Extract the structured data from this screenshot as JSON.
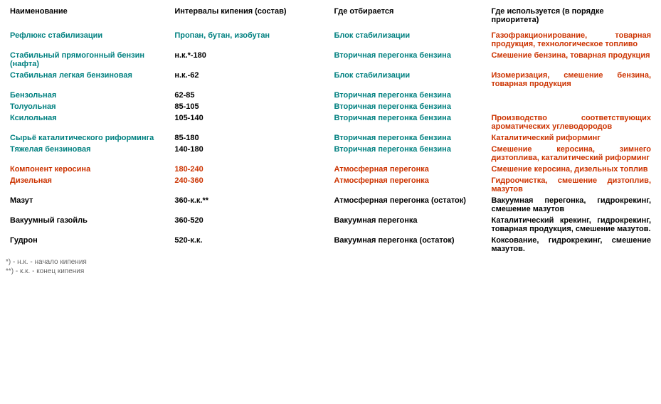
{
  "headers": {
    "h1": "Наименование",
    "h2": "Интервалы кипения (состав)",
    "h3": "Где отбирается",
    "h4": "Где используется (в порядке приоритета)"
  },
  "rows": [
    {
      "name": "Рефлюкс стабилизации",
      "nameCls": "c-teal",
      "interval": "Пропан, бутан, изобутан",
      "intervalCls": "c-teal",
      "where": "Блок стабилизации",
      "whereCls": "c-teal",
      "use": "Газофракционирование, товарная продукция, технологическое топливо",
      "useCls": "c-red justify"
    },
    {
      "name": "Стабильный прямогонный бензин (нафта)",
      "nameCls": "c-teal",
      "interval": "н.к.*-180",
      "intervalCls": "c-black",
      "where": "Вторичная перегонка бензина",
      "whereCls": "c-teal",
      "use": "Смешение бензина, товарная продукция",
      "useCls": "c-red justify"
    },
    {
      "name": "Стабильная легкая бензиновая",
      "nameCls": "c-teal",
      "interval": "н.к.-62",
      "intervalCls": "c-black",
      "where": "Блок стабилизации",
      "whereCls": "c-teal",
      "use": "Изомеризация, смешение бензина, товарная продукция",
      "useCls": "c-red justify"
    },
    {
      "name": "Бензольная",
      "nameCls": "c-teal",
      "interval": "62-85",
      "intervalCls": "c-black",
      "where": "Вторичная перегонка бензина",
      "whereCls": "c-teal",
      "use": "",
      "useCls": "c-red"
    },
    {
      "name": "Толуольная",
      "nameCls": "c-teal",
      "interval": "85-105",
      "intervalCls": "c-black",
      "where": "Вторичная перегонка бензина",
      "whereCls": "c-teal",
      "use": "",
      "useCls": "c-red"
    },
    {
      "name": "Ксилольная",
      "nameCls": "c-teal",
      "interval": "105-140",
      "intervalCls": "c-black",
      "where": "Вторичная перегонка бензина",
      "whereCls": "c-teal",
      "use": "Производство соответствующих ароматических углеводородов",
      "useCls": "c-red justify"
    },
    {
      "name": "Сырьё каталитического риформинга",
      "nameCls": "c-teal justify",
      "interval": "85-180",
      "intervalCls": "c-black",
      "where": "Вторичная перегонка бензина",
      "whereCls": "c-teal",
      "use": "Каталитический риформинг",
      "useCls": "c-red"
    },
    {
      "name": "Тяжелая бензиновая",
      "nameCls": "c-teal",
      "interval": "140-180",
      "intervalCls": "c-black",
      "where": "Вторичная перегонка бензина",
      "whereCls": "c-teal",
      "use": "Смешение керосина, зимнего дизтоплива, каталитический риформинг",
      "useCls": "c-red justify"
    },
    {
      "name": "Компонент керосина",
      "nameCls": "c-red",
      "interval": "180-240",
      "intervalCls": "c-red",
      "where": "Атмосферная перегонка",
      "whereCls": "c-red",
      "use": "Смешение керосина, дизельных топлив",
      "useCls": "c-red justify"
    },
    {
      "name": "Дизельная",
      "nameCls": "c-red",
      "interval": "240-360",
      "intervalCls": "c-red",
      "where": "Атмосферная перегонка",
      "whereCls": "c-red",
      "use": "Гидроочистка, смешение дизтоплив, мазутов",
      "useCls": "c-red justify"
    },
    {
      "name": "Мазут",
      "nameCls": "c-black",
      "interval": "360-к.к.**",
      "intervalCls": "c-black",
      "where": "Атмосферная перегонка (остаток)",
      "whereCls": "c-black justify",
      "use": "Вакуумная перегонка, гидрокрекинг, смешение мазутов",
      "useCls": "c-black justify"
    },
    {
      "name": "Вакуумный газойль",
      "nameCls": "c-black",
      "interval": "360-520",
      "intervalCls": "c-black",
      "where": "Вакуумная перегонка",
      "whereCls": "c-black",
      "use": "Каталитический крекинг, гидрокрекинг, товарная продукция, смешение мазутов.",
      "useCls": "c-black justify"
    },
    {
      "name": "Гудрон",
      "nameCls": "c-black",
      "interval": "520-к.к.",
      "intervalCls": "c-black",
      "where": "Вакуумная перегонка (остаток)",
      "whereCls": "c-black",
      "use": "Коксование, гидрокрекинг, смешение мазутов.",
      "useCls": "c-black justify"
    }
  ],
  "footnotes": {
    "f1": "*) - н.к. - начало кипения",
    "f2": "**) - к.к. - конец кипения"
  },
  "colors": {
    "teal": "#008080",
    "red": "#cc3300",
    "black": "#000000",
    "footnote": "#666666",
    "background": "#ffffff"
  },
  "type": "table",
  "columns": [
    "Наименование",
    "Интервалы кипения (состав)",
    "Где отбирается",
    "Где используется (в порядке приоритета)"
  ]
}
